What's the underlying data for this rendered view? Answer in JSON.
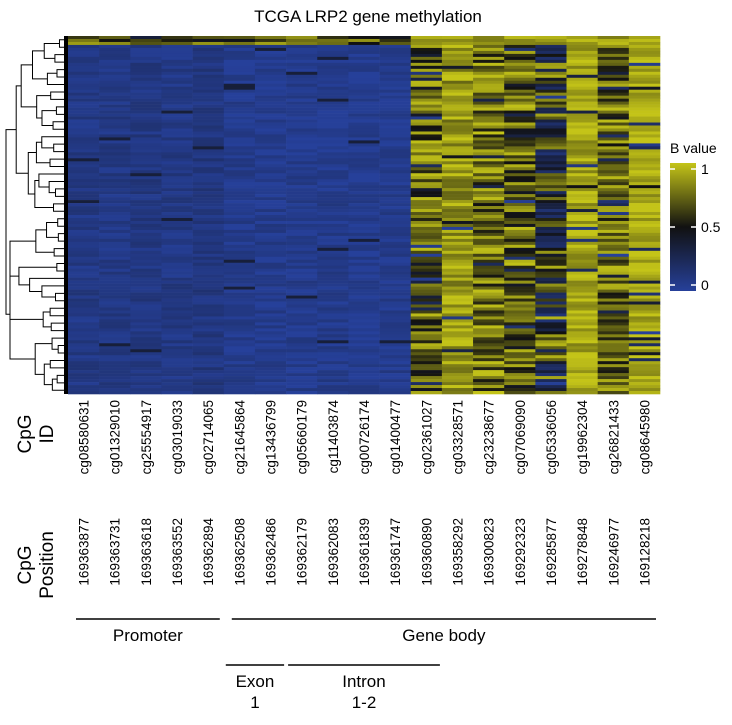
{
  "chart_data": {
    "type": "heatmap",
    "title": "TCGA LRP2 gene methylation",
    "legend": {
      "title": "B value",
      "placement": "right",
      "ticks": [
        "1",
        "0.5",
        "0"
      ],
      "tick_values": [
        1,
        0.5,
        0
      ],
      "range": [
        0,
        1
      ],
      "colors": {
        "low": "#26409a",
        "mid": "#111111",
        "high": "#c4c418"
      }
    },
    "row_labels": {
      "id": "CpG\nID",
      "position": "CpG\nPosition"
    },
    "columns": [
      {
        "id": "cg08580631",
        "position": "169363877",
        "region": "Promoter",
        "mean": 0.08
      },
      {
        "id": "cg01329010",
        "position": "169363731",
        "region": "Promoter",
        "mean": 0.08
      },
      {
        "id": "cg25554917",
        "position": "169363618",
        "region": "Promoter",
        "mean": 0.09
      },
      {
        "id": "cg03019033",
        "position": "169363552",
        "region": "Promoter",
        "mean": 0.08
      },
      {
        "id": "cg02714065",
        "position": "169362894",
        "region": "Promoter",
        "mean": 0.1
      },
      {
        "id": "cg21645864",
        "position": "169362508",
        "region": "Gene body",
        "mean": 0.05
      },
      {
        "id": "cg13436799",
        "position": "169362486",
        "region": "Gene body",
        "mean": 0.05
      },
      {
        "id": "cg05660179",
        "position": "169362179",
        "region": "Gene body",
        "mean": 0.05
      },
      {
        "id": "cg11403874",
        "position": "169362083",
        "region": "Gene body",
        "mean": 0.05
      },
      {
        "id": "cg00726174",
        "position": "169361839",
        "region": "Gene body",
        "mean": 0.04
      },
      {
        "id": "cg01400477",
        "position": "169361747",
        "region": "Gene body",
        "mean": 0.05
      },
      {
        "id": "cg02361027",
        "position": "169360890",
        "region": "Gene body",
        "mean": 0.7,
        "highlight": true
      },
      {
        "id": "cg03328571",
        "position": "169358292",
        "region": "Gene body",
        "mean": 0.88
      },
      {
        "id": "cg23238677",
        "position": "169300823",
        "region": "Gene body",
        "mean": 0.75
      },
      {
        "id": "cg07069090",
        "position": "169292323",
        "region": "Gene body",
        "mean": 0.7
      },
      {
        "id": "cg05336056",
        "position": "169285877",
        "region": "Gene body",
        "mean": 0.55
      },
      {
        "id": "cg19962304",
        "position": "169278848",
        "region": "Gene body",
        "mean": 0.92
      },
      {
        "id": "cg26821433",
        "position": "169246977",
        "region": "Gene body",
        "mean": 0.75
      },
      {
        "id": "cg08645980",
        "position": "169128218",
        "region": "Gene body",
        "mean": 0.93
      }
    ],
    "highlight_color": "#e8202a",
    "annotations": [
      {
        "label": "Promoter",
        "first": 0,
        "last": 4,
        "level": 1
      },
      {
        "label": "Gene body",
        "first": 5,
        "last": 18,
        "level": 1
      },
      {
        "label": "Exon\n1",
        "first": 5,
        "last": 6,
        "level": 2
      },
      {
        "label": "Intron\n1-2",
        "first": 7,
        "last": 11,
        "level": 2
      }
    ],
    "dendrogram": "rows"
  }
}
